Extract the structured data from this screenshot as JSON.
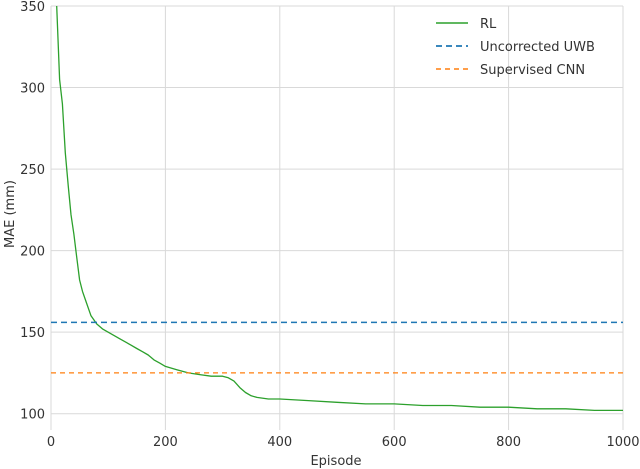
{
  "chart_data": {
    "type": "line",
    "title": "",
    "xlabel": "Episode",
    "ylabel": "MAE (mm)",
    "xlim": [
      0,
      1000
    ],
    "ylim": [
      90,
      350
    ],
    "xticks": [
      0,
      200,
      400,
      600,
      800,
      1000
    ],
    "yticks": [
      100,
      150,
      200,
      250,
      300,
      350
    ],
    "grid": true,
    "legend_position": "top-right",
    "series": [
      {
        "name": "RL",
        "style": "solid",
        "color": "#2ca02c",
        "x": [
          10,
          15,
          20,
          25,
          30,
          35,
          40,
          45,
          50,
          55,
          60,
          70,
          80,
          90,
          100,
          110,
          120,
          130,
          140,
          150,
          160,
          170,
          180,
          190,
          200,
          220,
          240,
          260,
          280,
          300,
          310,
          320,
          330,
          340,
          350,
          360,
          380,
          400,
          450,
          500,
          550,
          600,
          650,
          700,
          750,
          800,
          850,
          900,
          950,
          1000
        ],
        "y": [
          350,
          305,
          290,
          260,
          240,
          222,
          210,
          196,
          182,
          175,
          170,
          160,
          155,
          152,
          150,
          148,
          146,
          144,
          142,
          140,
          138,
          136,
          133,
          131,
          129,
          127,
          125,
          124,
          123,
          123,
          122,
          120,
          116,
          113,
          111,
          110,
          109,
          109,
          108,
          107,
          106,
          106,
          105,
          105,
          104,
          104,
          103,
          103,
          102,
          102
        ]
      },
      {
        "name": "Uncorrected UWB",
        "style": "dashed",
        "color": "#1f77b4",
        "x": [
          0,
          1000
        ],
        "y": [
          156,
          156
        ]
      },
      {
        "name": "Supervised CNN",
        "style": "dashed-thin",
        "color": "#ff7f0e",
        "x": [
          0,
          1000
        ],
        "y": [
          125,
          125
        ]
      }
    ]
  }
}
